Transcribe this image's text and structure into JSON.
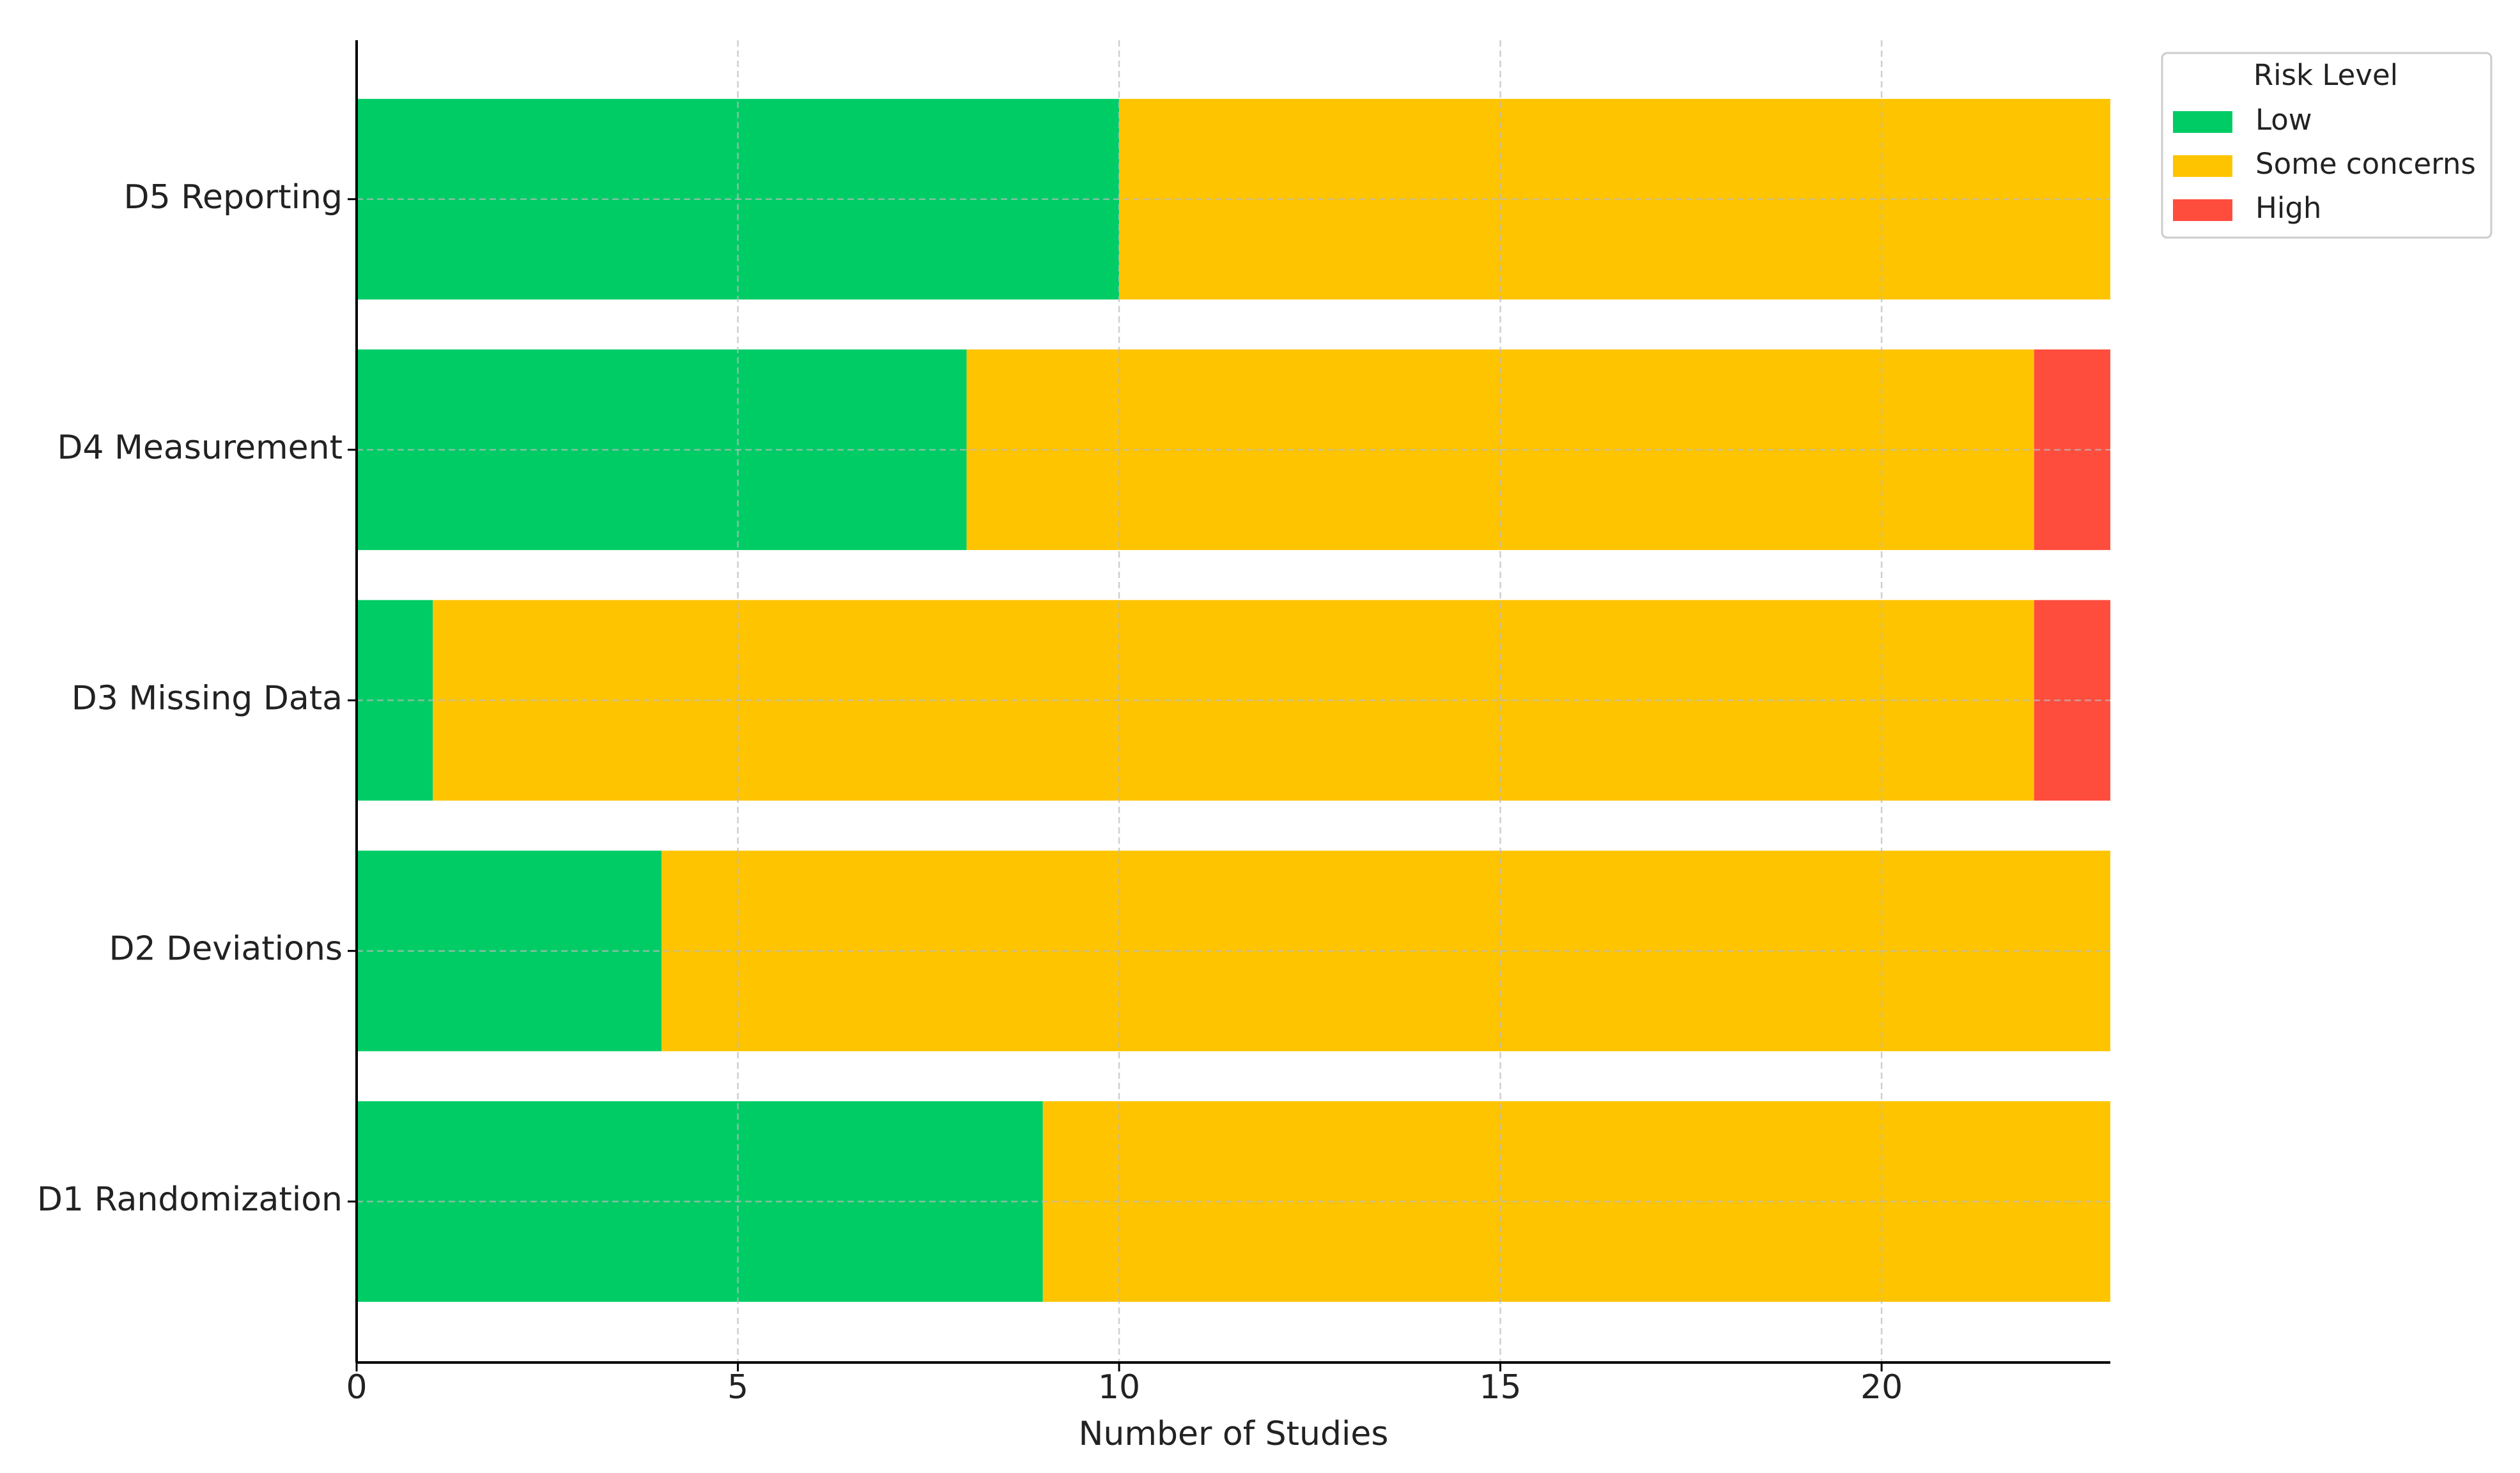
{
  "chart_data": {
    "type": "stacked-barh",
    "categories": [
      "D1 Randomization",
      "D2 Deviations",
      "D3 Missing Data",
      "D4 Measurement",
      "D5 Reporting"
    ],
    "series": [
      {
        "name": "Low",
        "color": "#00cc66",
        "values": [
          9,
          4,
          1,
          8,
          10
        ]
      },
      {
        "name": "Some concerns",
        "color": "#ffc400",
        "values": [
          14,
          19,
          21,
          14,
          13
        ]
      },
      {
        "name": "High",
        "color": "#ff4d3d",
        "values": [
          0,
          0,
          1,
          1,
          0
        ]
      }
    ],
    "xlabel": "Number of Studies",
    "xlim": [
      0,
      23
    ],
    "xticks": [
      0,
      5,
      10,
      15,
      20
    ],
    "grid": true,
    "legend": {
      "title": "Risk Level",
      "position": "outside-upper-right"
    }
  }
}
